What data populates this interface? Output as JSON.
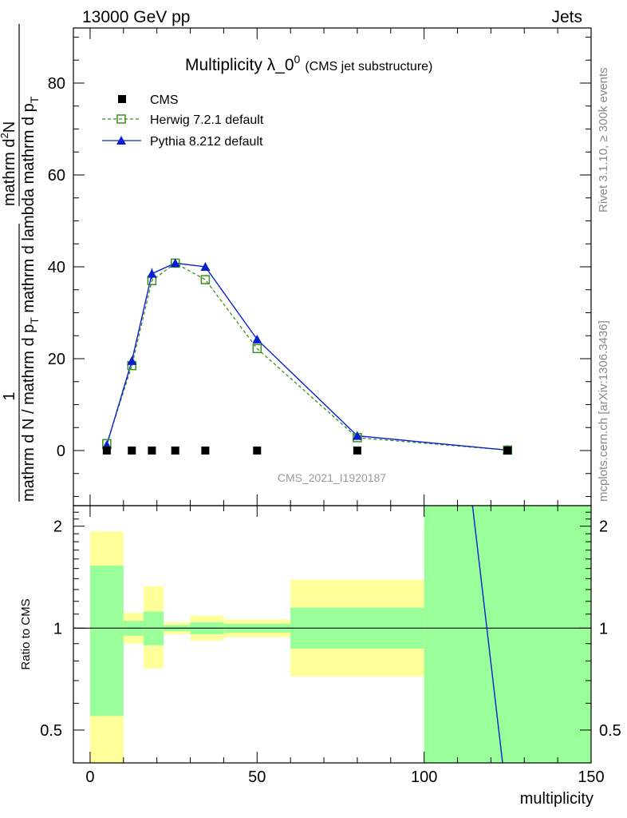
{
  "header": {
    "left": "13000 GeV pp",
    "right": "Jets"
  },
  "side_labels": {
    "rivet": "Rivet 3.1.10, ≥ 300k events",
    "mcplots": "mcplots.cern.ch [arXiv:1306.3436]"
  },
  "chart_data": [
    {
      "type": "line",
      "title": "Multiplicity λ_0",
      "title_sup": "0",
      "subtitle": "(CMS jet substructure)",
      "watermark": "CMS_2021_I1920187",
      "ylabel": {
        "numerator": "1",
        "denominator": "mathrm d N / mathrm d p",
        "denominator_sub": "T",
        "numerator_fraction": "mathrm d",
        "numerator_fraction_sup": "2",
        "numerator_fraction_tail": "N",
        "denominator_fraction": "mathrm d p",
        "denominator_fraction_sub": "T",
        "denominator_fraction_tail": " mathrm d lambda",
        "denominator_tail": " mathrm d p",
        "denominator_tail_sub": "T"
      },
      "xlim": [
        -5,
        150
      ],
      "ylim": [
        -12,
        92
      ],
      "yticks": [
        0,
        20,
        40,
        60,
        80
      ],
      "series": [
        {
          "name": "CMS",
          "style": "square-marker",
          "color": "#000000",
          "x": [
            5,
            12.5,
            18.5,
            25.5,
            34.5,
            50,
            80,
            125
          ],
          "y": [
            0,
            0,
            0,
            0,
            0,
            0,
            0,
            0
          ]
        },
        {
          "name": "Herwig 7.2.1 default",
          "style": "dashed-open-square",
          "color": "#3a8f1a",
          "x": [
            5,
            12.5,
            18.5,
            25.5,
            34.5,
            50,
            80,
            125
          ],
          "y": [
            1.5,
            18.5,
            37,
            40.8,
            37.2,
            22.2,
            2.8,
            0.1
          ]
        },
        {
          "name": "Pythia 8.212 default",
          "style": "solid-triangle",
          "color": "#0a1fd0",
          "x": [
            5,
            12.5,
            18.5,
            25.5,
            34.5,
            50,
            80,
            125
          ],
          "y": [
            1.2,
            19.5,
            38.5,
            40.8,
            40.0,
            24.2,
            3.2,
            0.1
          ],
          "yerr": [
            0.3,
            1.0,
            1.2,
            1.0,
            0.8,
            0.4,
            0.2,
            0.05
          ]
        }
      ]
    },
    {
      "type": "area",
      "ylabel": "Ratio to CMS",
      "xlabel": "multiplicity",
      "xlim": [
        -5,
        150
      ],
      "ylim": [
        0.4,
        2.3
      ],
      "yscale": "log",
      "xticks": [
        0,
        50,
        100,
        150
      ],
      "yticks": [
        0.5,
        1,
        2
      ],
      "reference_line": 1,
      "colors": {
        "outer_band": "#ffff99",
        "inner_band": "#99ff99",
        "pythia_line": "#0a1fd0"
      },
      "bands": [
        {
          "x0": 0,
          "x1": 10,
          "outer": [
            0.4,
            1.93
          ],
          "inner": [
            0.55,
            1.53
          ]
        },
        {
          "x0": 10,
          "x1": 16,
          "outer": [
            0.9,
            1.11
          ],
          "inner": [
            0.95,
            1.05
          ]
        },
        {
          "x0": 16,
          "x1": 22,
          "outer": [
            0.76,
            1.33
          ],
          "inner": [
            0.89,
            1.12
          ]
        },
        {
          "x0": 22,
          "x1": 30,
          "outer": [
            0.96,
            1.04
          ],
          "inner": [
            0.98,
            1.02
          ]
        },
        {
          "x0": 30,
          "x1": 40,
          "outer": [
            0.92,
            1.09
          ],
          "inner": [
            0.96,
            1.04
          ]
        },
        {
          "x0": 40,
          "x1": 60,
          "outer": [
            0.94,
            1.06
          ],
          "inner": [
            0.97,
            1.03
          ]
        },
        {
          "x0": 60,
          "x1": 100,
          "outer": [
            0.72,
            1.39
          ],
          "inner": [
            0.87,
            1.15
          ]
        },
        {
          "x0": 100,
          "x1": 150,
          "outer": [
            0.4,
            2.3
          ],
          "inner": [
            0.4,
            2.3
          ]
        }
      ],
      "pythia_ratio_segment": {
        "x": [
          114.5,
          123.5
        ],
        "y": [
          2.3,
          0.4
        ]
      }
    }
  ]
}
